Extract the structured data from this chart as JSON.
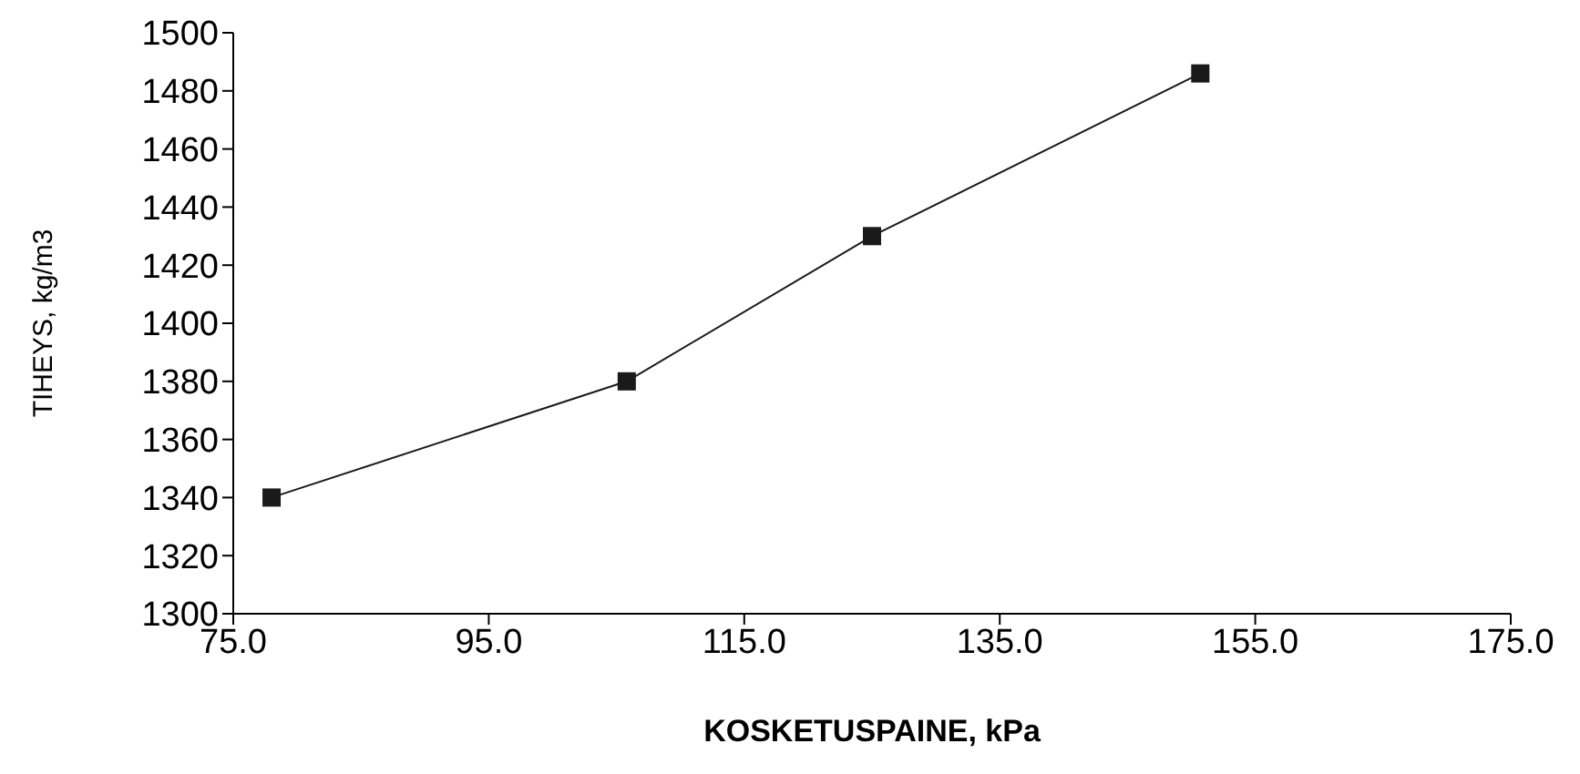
{
  "chart_data": {
    "type": "line",
    "xlabel": "KOSKETUSPAINE, kPa",
    "ylabel": "TIHEYS, kg/m3",
    "x": [
      78,
      105.8,
      125,
      150.7
    ],
    "series": [
      {
        "color": "#1a1a1a",
        "values": [
          1340,
          1380,
          1430,
          1486
        ]
      }
    ],
    "xlim": [
      75,
      175
    ],
    "xticks": [
      {
        "value": 75,
        "label": "75.0"
      },
      {
        "value": 95,
        "label": "95.0"
      },
      {
        "value": 115,
        "label": "115.0"
      },
      {
        "value": 135,
        "label": "135.0"
      },
      {
        "value": 155,
        "label": "155.0"
      },
      {
        "value": 175,
        "label": "175.0"
      }
    ],
    "ylim": [
      1300,
      1500
    ],
    "yticks": [
      1300,
      1320,
      1340,
      1360,
      1380,
      1400,
      1420,
      1440,
      1460,
      1480,
      1500
    ],
    "grid": false,
    "legend": false,
    "marker": "square",
    "line_style": "solid"
  }
}
